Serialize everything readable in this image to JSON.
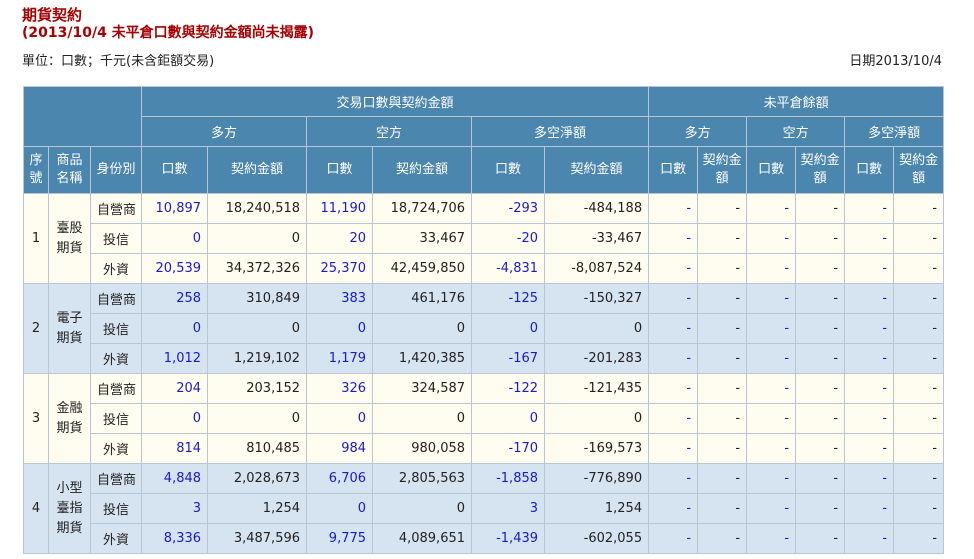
{
  "title": "期貨契約",
  "subtitle": "(2013/10/4 未平倉口數與契約金額尚未揭露)",
  "unit_text": "單位：口數；千元(未含鉅額交易)",
  "date_text": "日期2013/10/4",
  "headers": {
    "trade_group": "交易口數與契約金額",
    "open_group": "未平倉餘額",
    "long": "多方",
    "short": "空方",
    "net": "多空淨額",
    "seq": "序號",
    "product": "商品名稱",
    "identity": "身份別",
    "lots": "口數",
    "amount": "契約金額"
  },
  "rows": [
    {
      "seq": "1",
      "product": "臺股期貨",
      "identity": "自營商",
      "long_lots": "10,897",
      "long_amt": "18,240,518",
      "short_lots": "11,190",
      "short_amt": "18,724,706",
      "net_lots": "-293",
      "net_amt": "-484,188"
    },
    {
      "seq": "",
      "product": "",
      "identity": "投信",
      "long_lots": "0",
      "long_amt": "0",
      "short_lots": "20",
      "short_amt": "33,467",
      "net_lots": "-20",
      "net_amt": "-33,467"
    },
    {
      "seq": "",
      "product": "",
      "identity": "外資",
      "long_lots": "20,539",
      "long_amt": "34,372,326",
      "short_lots": "25,370",
      "short_amt": "42,459,850",
      "net_lots": "-4,831",
      "net_amt": "-8,087,524"
    },
    {
      "seq": "2",
      "product": "電子期貨",
      "identity": "自營商",
      "long_lots": "258",
      "long_amt": "310,849",
      "short_lots": "383",
      "short_amt": "461,176",
      "net_lots": "-125",
      "net_amt": "-150,327"
    },
    {
      "seq": "",
      "product": "",
      "identity": "投信",
      "long_lots": "0",
      "long_amt": "0",
      "short_lots": "0",
      "short_amt": "0",
      "net_lots": "0",
      "net_amt": "0"
    },
    {
      "seq": "",
      "product": "",
      "identity": "外資",
      "long_lots": "1,012",
      "long_amt": "1,219,102",
      "short_lots": "1,179",
      "short_amt": "1,420,385",
      "net_lots": "-167",
      "net_amt": "-201,283"
    },
    {
      "seq": "3",
      "product": "金融期貨",
      "identity": "自營商",
      "long_lots": "204",
      "long_amt": "203,152",
      "short_lots": "326",
      "short_amt": "324,587",
      "net_lots": "-122",
      "net_amt": "-121,435"
    },
    {
      "seq": "",
      "product": "",
      "identity": "投信",
      "long_lots": "0",
      "long_amt": "0",
      "short_lots": "0",
      "short_amt": "0",
      "net_lots": "0",
      "net_amt": "0"
    },
    {
      "seq": "",
      "product": "",
      "identity": "外資",
      "long_lots": "814",
      "long_amt": "810,485",
      "short_lots": "984",
      "short_amt": "980,058",
      "net_lots": "-170",
      "net_amt": "-169,573"
    },
    {
      "seq": "4",
      "product": "小型臺指期貨",
      "identity": "自營商",
      "long_lots": "4,848",
      "long_amt": "2,028,673",
      "short_lots": "6,706",
      "short_amt": "2,805,563",
      "net_lots": "-1,858",
      "net_amt": "-776,890"
    },
    {
      "seq": "",
      "product": "",
      "identity": "投信",
      "long_lots": "3",
      "long_amt": "1,254",
      "short_lots": "0",
      "short_amt": "0",
      "net_lots": "3",
      "net_amt": "1,254"
    },
    {
      "seq": "",
      "product": "",
      "identity": "外資",
      "long_lots": "8,336",
      "long_amt": "3,487,596",
      "short_lots": "9,775",
      "short_amt": "4,089,651",
      "net_lots": "-1,439",
      "net_amt": "-602,055"
    }
  ],
  "dash": "-"
}
